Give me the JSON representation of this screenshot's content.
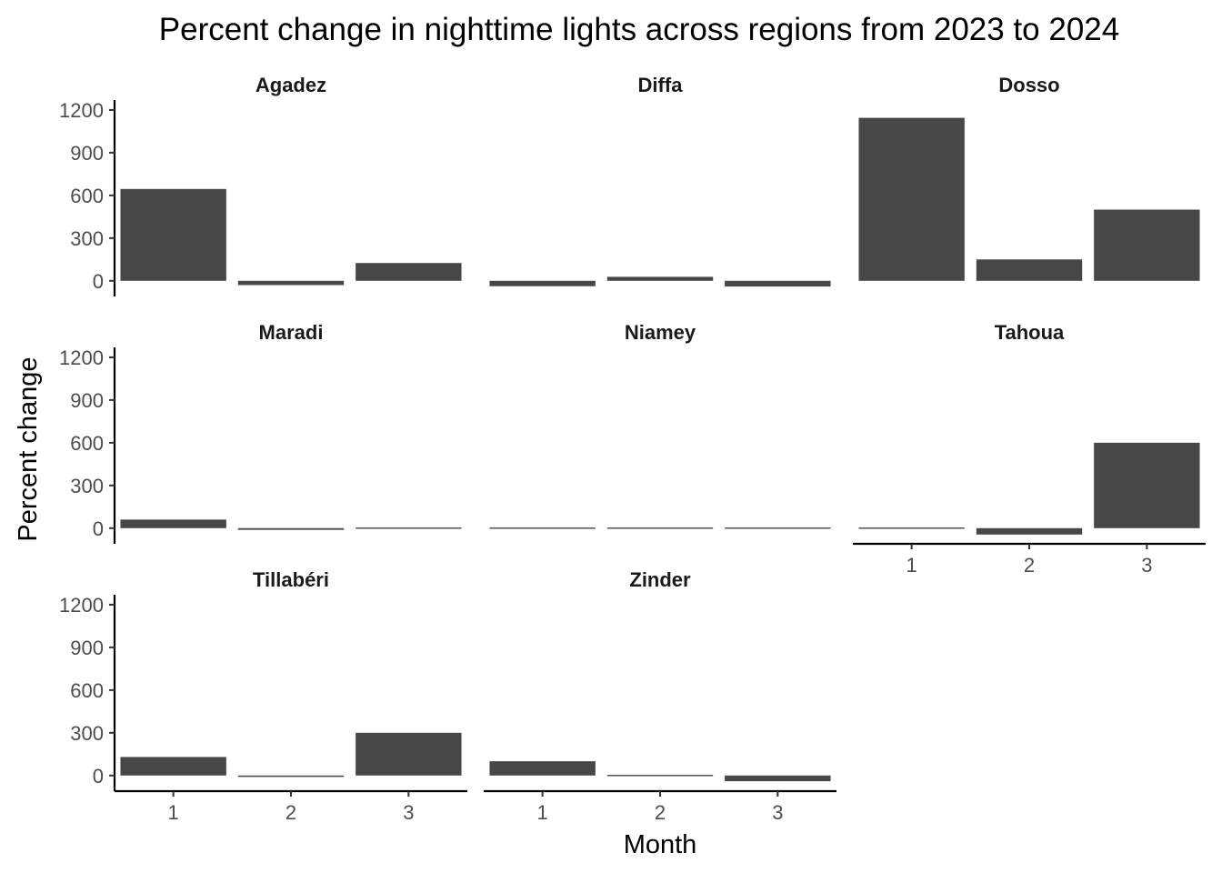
{
  "chart_data": {
    "type": "bar",
    "title": "Percent change in nighttime lights across regions from 2023 to 2024",
    "xlabel": "Month",
    "ylabel": "Percent change",
    "categories": [
      "1",
      "2",
      "3"
    ],
    "yticks": [
      0,
      300,
      600,
      900,
      1200
    ],
    "ylim": [
      -110,
      1270
    ],
    "grid": false,
    "bar_color": "#474747",
    "panels": [
      {
        "name": "Agadez",
        "values": [
          645,
          -30,
          125
        ]
      },
      {
        "name": "Diffa",
        "values": [
          -38,
          28,
          -40
        ]
      },
      {
        "name": "Dosso",
        "values": [
          1145,
          150,
          500
        ]
      },
      {
        "name": "Maradi",
        "values": [
          60,
          -12,
          -5
        ]
      },
      {
        "name": "Niamey",
        "values": [
          -5,
          -8,
          -8
        ]
      },
      {
        "name": "Tahoua",
        "values": [
          -5,
          -45,
          600
        ]
      },
      {
        "name": "Tillabéri",
        "values": [
          130,
          -10,
          300
        ]
      },
      {
        "name": "Zinder",
        "values": [
          100,
          -3,
          -40
        ]
      }
    ]
  }
}
